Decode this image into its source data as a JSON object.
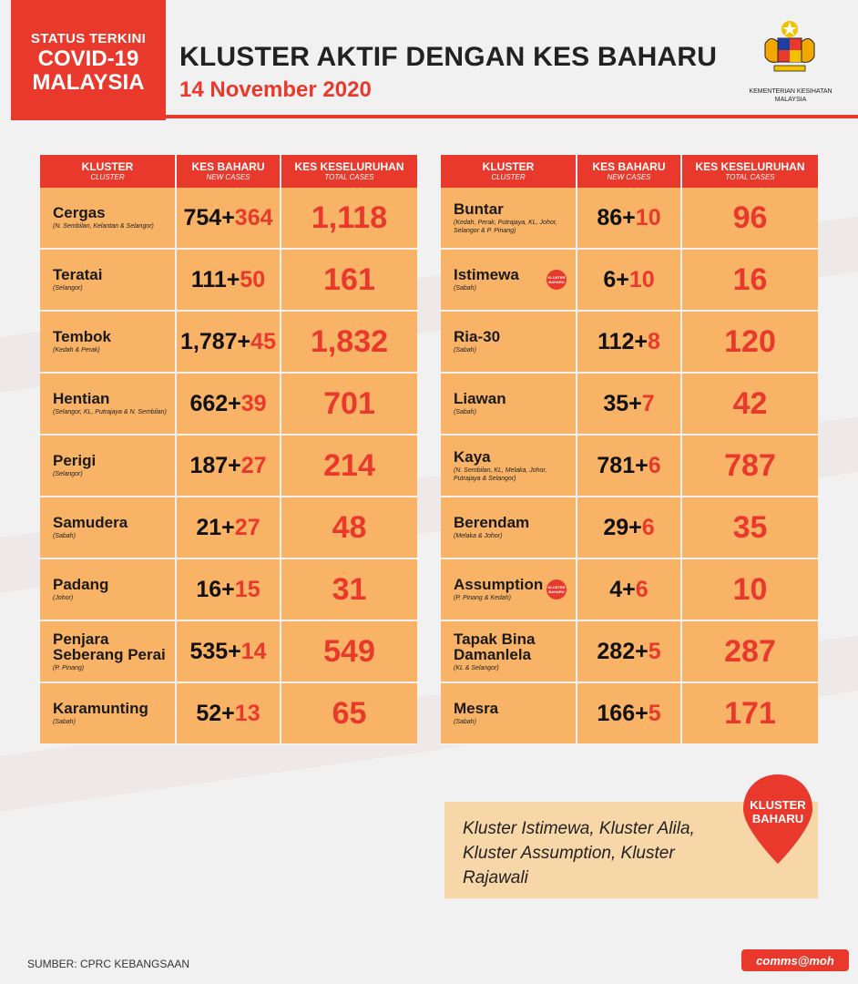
{
  "header": {
    "status_line1": "STATUS TERKINI",
    "status_line2": "COVID-19",
    "status_line3": "MALAYSIA",
    "title": "KLUSTER AKTIF DENGAN KES BAHARU",
    "date": "14 November 2020",
    "ministry": "KEMENTERIAN KESIHATAN MALAYSIA"
  },
  "columns": {
    "kluster": "KLUSTER",
    "kluster_sub": "CLUSTER",
    "kes_baharu": "KES BAHARU",
    "kes_baharu_sub": "NEW CASES",
    "kes_keseluruhan": "KES KESELURUHAN",
    "kes_keseluruhan_sub": "TOTAL CASES"
  },
  "left_rows": [
    {
      "name": "Cergas",
      "loc": "(N. Sembilan, Kelantan & Selangor)",
      "prev": "754+",
      "add": "364",
      "total": "1,118"
    },
    {
      "name": "Teratai",
      "loc": "(Selangor)",
      "prev": "111+",
      "add": "50",
      "total": "161"
    },
    {
      "name": "Tembok",
      "loc": "(Kedah & Perak)",
      "prev": "1,787+",
      "add": "45",
      "total": "1,832"
    },
    {
      "name": "Hentian",
      "loc": "(Selangor, KL, Putrajaya & N. Sembilan)",
      "prev": "662+",
      "add": "39",
      "total": "701"
    },
    {
      "name": "Perigi",
      "loc": "(Selangor)",
      "prev": "187+",
      "add": "27",
      "total": "214"
    },
    {
      "name": "Samudera",
      "loc": "(Sabah)",
      "prev": "21+",
      "add": "27",
      "total": "48"
    },
    {
      "name": "Padang",
      "loc": "(Johor)",
      "prev": "16+",
      "add": "15",
      "total": "31"
    },
    {
      "name": "Penjara Seberang Perai",
      "loc": "(P. Pinang)",
      "prev": "535+",
      "add": "14",
      "total": "549"
    },
    {
      "name": "Karamunting",
      "loc": "(Sabah)",
      "prev": "52+",
      "add": "13",
      "total": "65"
    }
  ],
  "right_rows": [
    {
      "name": "Buntar",
      "loc": "(Kedah, Perak, Putrajaya, KL, Johor, Selangor & P. Pinang)",
      "prev": "86+",
      "add": "10",
      "total": "96",
      "badge": ""
    },
    {
      "name": "Istimewa",
      "loc": "(Sabah)",
      "prev": "6+",
      "add": "10",
      "total": "16",
      "badge": "KLUSTER BAHARU"
    },
    {
      "name": "Ria-30",
      "loc": "(Sabah)",
      "prev": "112+",
      "add": "8",
      "total": "120",
      "badge": ""
    },
    {
      "name": "Liawan",
      "loc": "(Sabah)",
      "prev": "35+",
      "add": "7",
      "total": "42",
      "badge": ""
    },
    {
      "name": "Kaya",
      "loc": "(N. Sembilan, KL, Melaka, Johor, Putrajaya & Selangor)",
      "prev": "781+",
      "add": "6",
      "total": "787",
      "badge": ""
    },
    {
      "name": "Berendam",
      "loc": "(Melaka & Johor)",
      "prev": "29+",
      "add": "6",
      "total": "35",
      "badge": ""
    },
    {
      "name": "Assumption",
      "loc": "(P. Pinang & Kedah)",
      "prev": "4+",
      "add": "6",
      "total": "10",
      "badge": "KLUSTER BAHARU"
    },
    {
      "name": "Tapak Bina Damanlela",
      "loc": "(KL & Selangor)",
      "prev": "282+",
      "add": "5",
      "total": "287",
      "badge": ""
    },
    {
      "name": "Mesra",
      "loc": "(Sabah)",
      "prev": "166+",
      "add": "5",
      "total": "171",
      "badge": ""
    }
  ],
  "note": {
    "text": "Kluster Istimewa, Kluster Alila, Kluster Assumption, Kluster Rajawali",
    "pin_label": "KLUSTER BAHARU"
  },
  "footer": {
    "source": "SUMBER: CPRC KEBANGSAAN",
    "brand": "comms@moh"
  },
  "colors": {
    "accent_red": "#e8392c",
    "cell_orange": "#f9b366"
  }
}
